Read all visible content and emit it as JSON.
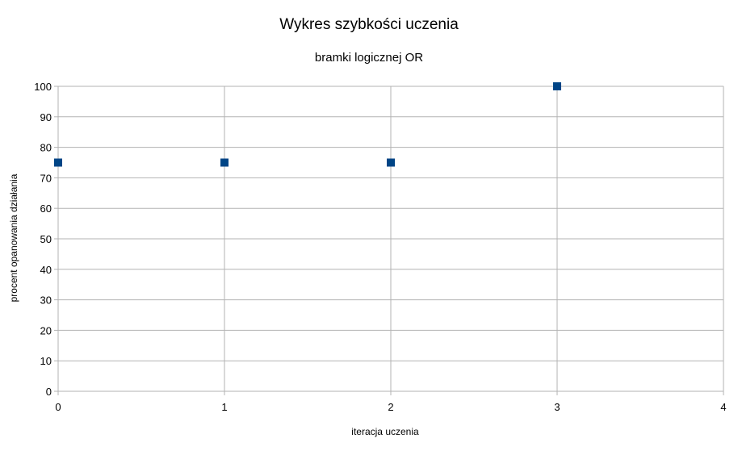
{
  "chart_data": {
    "type": "scatter",
    "title": "Wykres szybkości uczenia",
    "subtitle": "bramki logicznej OR",
    "xlabel": "iteracja uczenia",
    "ylabel": "procent opanowania działania",
    "xlim": [
      0,
      4
    ],
    "ylim": [
      0,
      100
    ],
    "xticks": [
      0,
      1,
      2,
      3,
      4
    ],
    "yticks": [
      0,
      10,
      20,
      30,
      40,
      50,
      60,
      70,
      80,
      90,
      100
    ],
    "grid": true,
    "legend": "none",
    "marker": "square",
    "color": "#004586",
    "points": [
      {
        "x": 0,
        "y": 75
      },
      {
        "x": 1,
        "y": 75
      },
      {
        "x": 2,
        "y": 75
      },
      {
        "x": 3,
        "y": 100
      }
    ]
  }
}
